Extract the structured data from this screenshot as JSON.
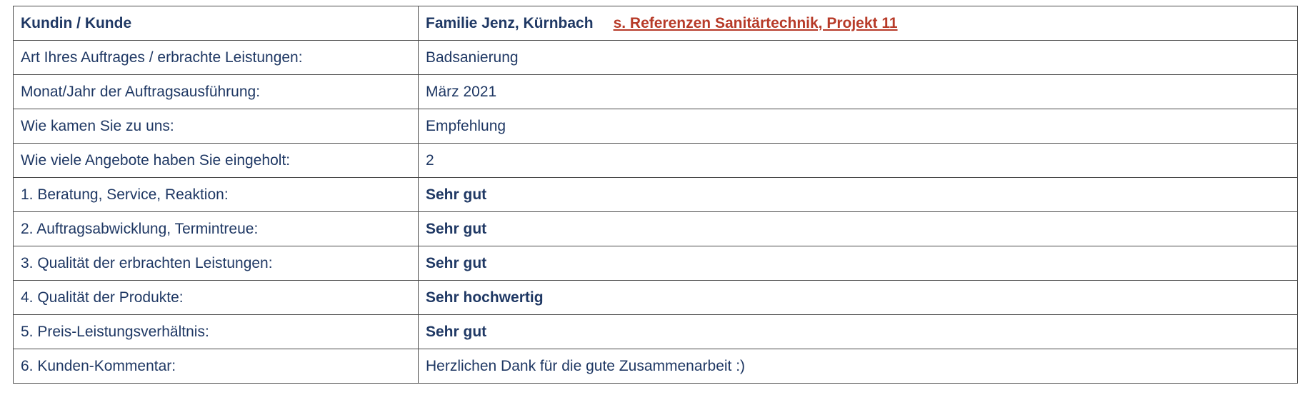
{
  "theme": {
    "navy": "#1f3864",
    "red": "#b73a28",
    "border": "#4a4a4a",
    "background": "#ffffff"
  },
  "table": {
    "header": {
      "label": "Kundin / Kunde",
      "customer": "Familie Jenz, Kürnbach",
      "link": "s. Referenzen Sanitärtechnik, Projekt 11"
    },
    "rows": [
      {
        "label": "Art Ihres Auftrages / erbrachte Leistungen:",
        "value": "Badsanierung"
      },
      {
        "label": "Monat/Jahr der Auftragsausführung:",
        "value": "März 2021"
      },
      {
        "label": "Wie kamen Sie zu uns:",
        "value": "Empfehlung"
      },
      {
        "label": "Wie viele Angebote haben Sie eingeholt:",
        "value": "2"
      },
      {
        "label": "1. Beratung, Service, Reaktion:",
        "value": "Sehr gut"
      },
      {
        "label": "2. Auftragsabwicklung, Termintreue:",
        "value": "Sehr gut"
      },
      {
        "label": "3. Qualität der erbrachten Leistungen:",
        "value": "Sehr gut"
      },
      {
        "label": "4. Qualität der Produkte:",
        "value": "Sehr hochwertig"
      },
      {
        "label": "5. Preis-Leistungsverhältnis:",
        "value": "Sehr gut"
      },
      {
        "label": "6. Kunden-Kommentar:",
        "value": "Herzlichen Dank für die gute Zusammenarbeit :)"
      }
    ]
  }
}
